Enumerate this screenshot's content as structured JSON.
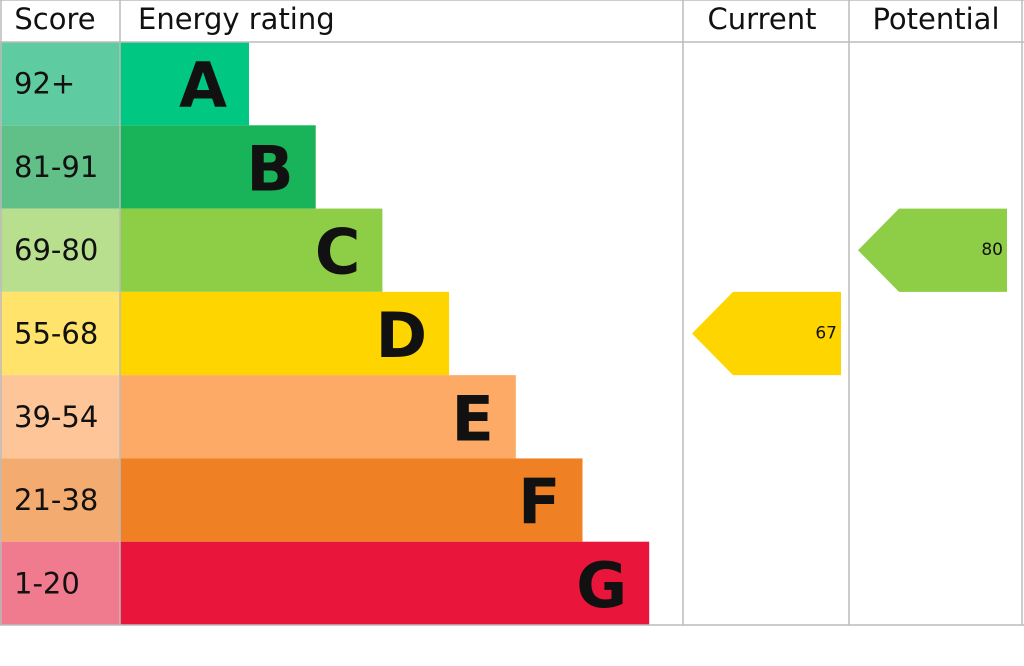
{
  "chart_data": {
    "type": "epc",
    "headers": [
      "Score",
      "Energy rating",
      "Current",
      "Potential"
    ],
    "scores": [
      "92+",
      "81-91",
      "69-80",
      "55-68",
      "39-54",
      "21-38",
      "1-20"
    ],
    "letters": [
      "A",
      "B",
      "C",
      "D",
      "E",
      "F",
      "G"
    ],
    "colors": [
      "#00c781",
      "#19b459",
      "#8dce46",
      "#ffd500",
      "#fcaa65",
      "#ef8023",
      "#e9153b"
    ],
    "score_colors": [
      "#5ecba0",
      "#61c088",
      "#b7df8e",
      "#ffe36a",
      "#fdc598",
      "#f4ab6f",
      "#f07a8e"
    ],
    "current": 67,
    "potential": 80
  }
}
